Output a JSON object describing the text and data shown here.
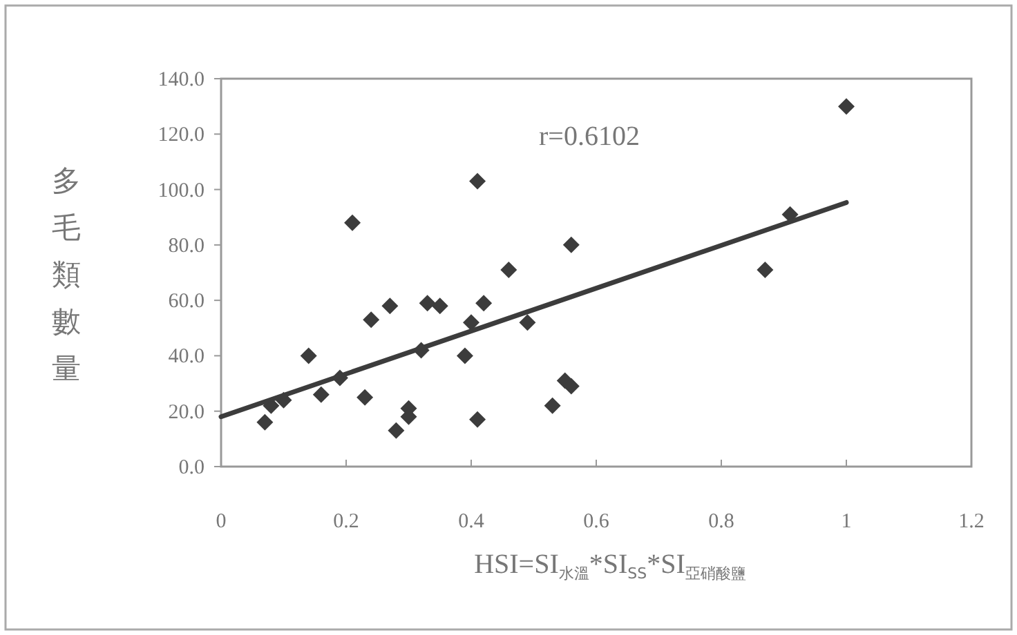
{
  "chart_data": {
    "type": "scatter",
    "xlabel": "HSI=SI$_{水溫}$*SI$_{SS}$*SI$_{亞硝酸鹽}$",
    "ylabel": "多毛類數量",
    "annotations": [
      "r=0.6102"
    ],
    "grid": false,
    "xlim": [
      0,
      1.2
    ],
    "xticks": [
      0,
      0.2,
      0.4,
      0.6,
      0.8,
      1,
      1.2
    ],
    "ylim": [
      0,
      140
    ],
    "yticks": [
      {
        "value": 0,
        "label": "0.0"
      },
      {
        "value": 20,
        "label": "20.0"
      },
      {
        "value": 40,
        "label": "40.0"
      },
      {
        "value": 60,
        "label": "60.0"
      },
      {
        "value": 80,
        "label": "80.0"
      },
      {
        "value": 100,
        "label": "100.0"
      },
      {
        "value": 120,
        "label": "120.0"
      },
      {
        "value": 140,
        "label": "140.0"
      }
    ],
    "series": [
      {
        "marker": "diamond",
        "color": "#3c3c3c",
        "x": [
          0.07,
          0.08,
          0.1,
          0.14,
          0.16,
          0.19,
          0.21,
          0.23,
          0.24,
          0.27,
          0.28,
          0.3,
          0.3,
          0.32,
          0.33,
          0.35,
          0.39,
          0.4,
          0.41,
          0.41,
          0.42,
          0.46,
          0.49,
          0.53,
          0.55,
          0.56,
          0.56,
          0.87,
          0.91,
          1
        ],
        "values": [
          16,
          22,
          24,
          40,
          26,
          32,
          88,
          25,
          53,
          58,
          13,
          21,
          18,
          42,
          59,
          58,
          40,
          52,
          103,
          17,
          59,
          71,
          52,
          22,
          31,
          29,
          80,
          71,
          91,
          130
        ]
      },
      {
        "type": "line",
        "marker": "none",
        "color": "#3c3c3c",
        "x": [
          0,
          1
        ],
        "values": [
          18,
          95.3
        ]
      }
    ]
  }
}
